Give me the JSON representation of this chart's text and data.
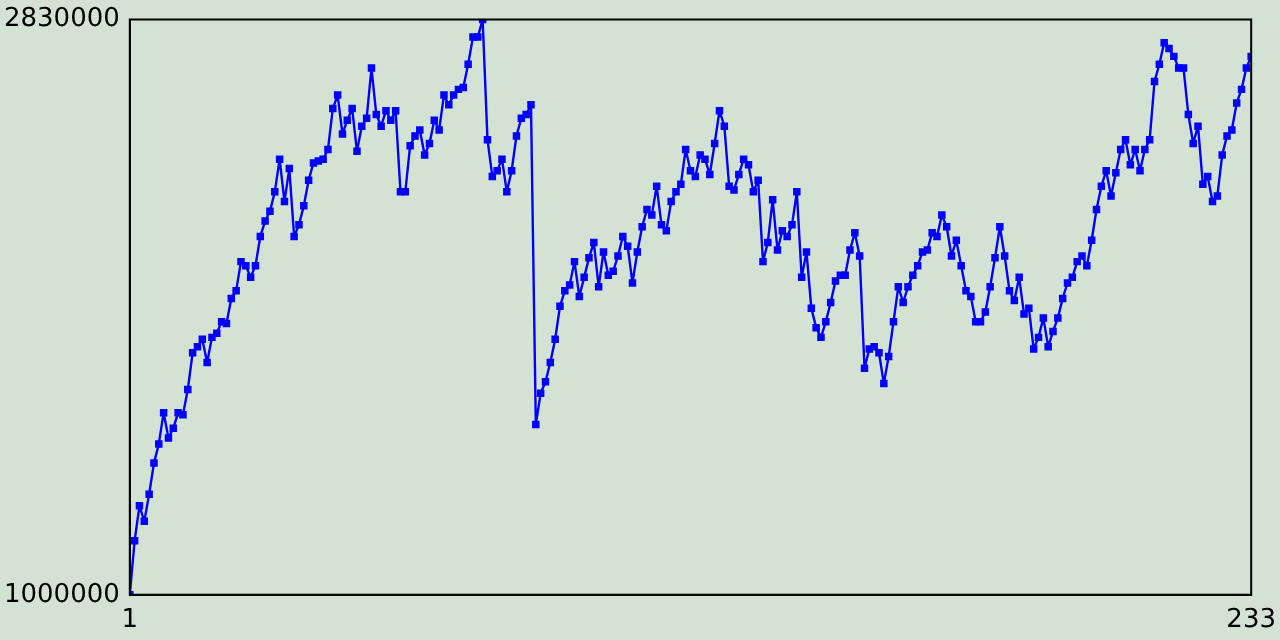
{
  "chart_data": {
    "type": "line",
    "marker": "square",
    "line_style": "solid",
    "grid": false,
    "legend": false,
    "xlim": [
      1,
      233
    ],
    "xticks": [
      1,
      233
    ],
    "ylim": [
      1000000,
      2830000
    ],
    "yticks": [
      1000000,
      2830000
    ],
    "x": [
      1,
      2,
      3,
      4,
      5,
      6,
      7,
      8,
      9,
      10,
      11,
      12,
      13,
      14,
      15,
      16,
      17,
      18,
      19,
      20,
      21,
      22,
      23,
      24,
      25,
      26,
      27,
      28,
      29,
      30,
      31,
      32,
      33,
      34,
      35,
      36,
      37,
      38,
      39,
      40,
      41,
      42,
      43,
      44,
      45,
      46,
      47,
      48,
      49,
      50,
      51,
      52,
      53,
      54,
      55,
      56,
      57,
      58,
      59,
      60,
      61,
      62,
      63,
      64,
      65,
      66,
      67,
      68,
      69,
      70,
      71,
      72,
      73,
      74,
      75,
      76,
      77,
      78,
      79,
      80,
      81,
      82,
      83,
      84,
      85,
      86,
      87,
      88,
      89,
      90,
      91,
      92,
      93,
      94,
      95,
      96,
      97,
      98,
      99,
      100,
      101,
      102,
      103,
      104,
      105,
      106,
      107,
      108,
      109,
      110,
      111,
      112,
      113,
      114,
      115,
      116,
      117,
      118,
      119,
      120,
      121,
      122,
      123,
      124,
      125,
      126,
      127,
      128,
      129,
      130,
      131,
      132,
      133,
      134,
      135,
      136,
      137,
      138,
      139,
      140,
      141,
      142,
      143,
      144,
      145,
      146,
      147,
      148,
      149,
      150,
      151,
      152,
      153,
      154,
      155,
      156,
      157,
      158,
      159,
      160,
      161,
      162,
      163,
      164,
      165,
      166,
      167,
      168,
      169,
      170,
      171,
      172,
      173,
      174,
      175,
      176,
      177,
      178,
      179,
      180,
      181,
      182,
      183,
      184,
      185,
      186,
      187,
      188,
      189,
      190,
      191,
      192,
      193,
      194,
      195,
      196,
      197,
      198,
      199,
      200,
      201,
      202,
      203,
      204,
      205,
      206,
      207,
      208,
      209,
      210,
      211,
      212,
      213,
      214,
      215,
      216,
      217,
      218,
      219,
      220,
      221,
      222,
      223,
      224,
      225,
      226,
      227,
      228,
      229,
      230,
      231,
      232,
      233
    ],
    "series": [
      {
        "color": "#0000ff",
        "values": [
          1000000,
          1172000,
          1283000,
          1234000,
          1320000,
          1419000,
          1480000,
          1579000,
          1499000,
          1530000,
          1579000,
          1573000,
          1653000,
          1770000,
          1789000,
          1813000,
          1739000,
          1819000,
          1832000,
          1869000,
          1863000,
          1943000,
          1967000,
          2060000,
          2047000,
          2010000,
          2047000,
          2140000,
          2189000,
          2220000,
          2282000,
          2386000,
          2251000,
          2356000,
          2140000,
          2177000,
          2238000,
          2319000,
          2374000,
          2380000,
          2386000,
          2417000,
          2547000,
          2590000,
          2466000,
          2510000,
          2547000,
          2411000,
          2491000,
          2516000,
          2676000,
          2528000,
          2491000,
          2540000,
          2510000,
          2540000,
          2282000,
          2282000,
          2429000,
          2460000,
          2479000,
          2399000,
          2436000,
          2510000,
          2479000,
          2590000,
          2559000,
          2590000,
          2608000,
          2614000,
          2688000,
          2775000,
          2775000,
          2830000,
          2448000,
          2331000,
          2349000,
          2386000,
          2282000,
          2349000,
          2460000,
          2516000,
          2528000,
          2559000,
          1542000,
          1641000,
          1678000,
          1739000,
          1813000,
          1918000,
          1967000,
          1986000,
          2060000,
          1949000,
          2010000,
          2072000,
          2121000,
          1980000,
          2091000,
          2017000,
          2029000,
          2078000,
          2140000,
          2109000,
          1992000,
          2091000,
          2171000,
          2226000,
          2208000,
          2300000,
          2177000,
          2158000,
          2251000,
          2282000,
          2306000,
          2417000,
          2349000,
          2331000,
          2399000,
          2386000,
          2337000,
          2436000,
          2540000,
          2491000,
          2300000,
          2288000,
          2337000,
          2386000,
          2368000,
          2282000,
          2319000,
          2060000,
          2121000,
          2257000,
          2097000,
          2158000,
          2140000,
          2177000,
          2282000,
          2010000,
          2091000,
          1912000,
          1850000,
          1819000,
          1869000,
          1930000,
          1998000,
          2017000,
          2017000,
          2097000,
          2152000,
          2078000,
          1721000,
          1782000,
          1789000,
          1770000,
          1672000,
          1758000,
          1869000,
          1980000,
          1930000,
          1980000,
          2017000,
          2047000,
          2091000,
          2097000,
          2152000,
          2140000,
          2208000,
          2171000,
          2078000,
          2128000,
          2047000,
          1967000,
          1949000,
          1869000,
          1869000,
          1900000,
          1980000,
          2072000,
          2171000,
          2078000,
          1967000,
          1936000,
          2010000,
          1893000,
          1912000,
          1782000,
          1819000,
          1881000,
          1789000,
          1838000,
          1881000,
          1943000,
          1992000,
          2010000,
          2060000,
          2078000,
          2047000,
          2128000,
          2226000,
          2300000,
          2349000,
          2269000,
          2343000,
          2417000,
          2448000,
          2368000,
          2417000,
          2349000,
          2417000,
          2448000,
          2633000,
          2688000,
          2756000,
          2738000,
          2713000,
          2676000,
          2676000,
          2528000,
          2436000,
          2491000,
          2306000,
          2331000,
          2251000,
          2269000,
          2399000,
          2460000,
          2479000,
          2565000,
          2608000,
          2676000,
          2713000
        ]
      }
    ]
  }
}
